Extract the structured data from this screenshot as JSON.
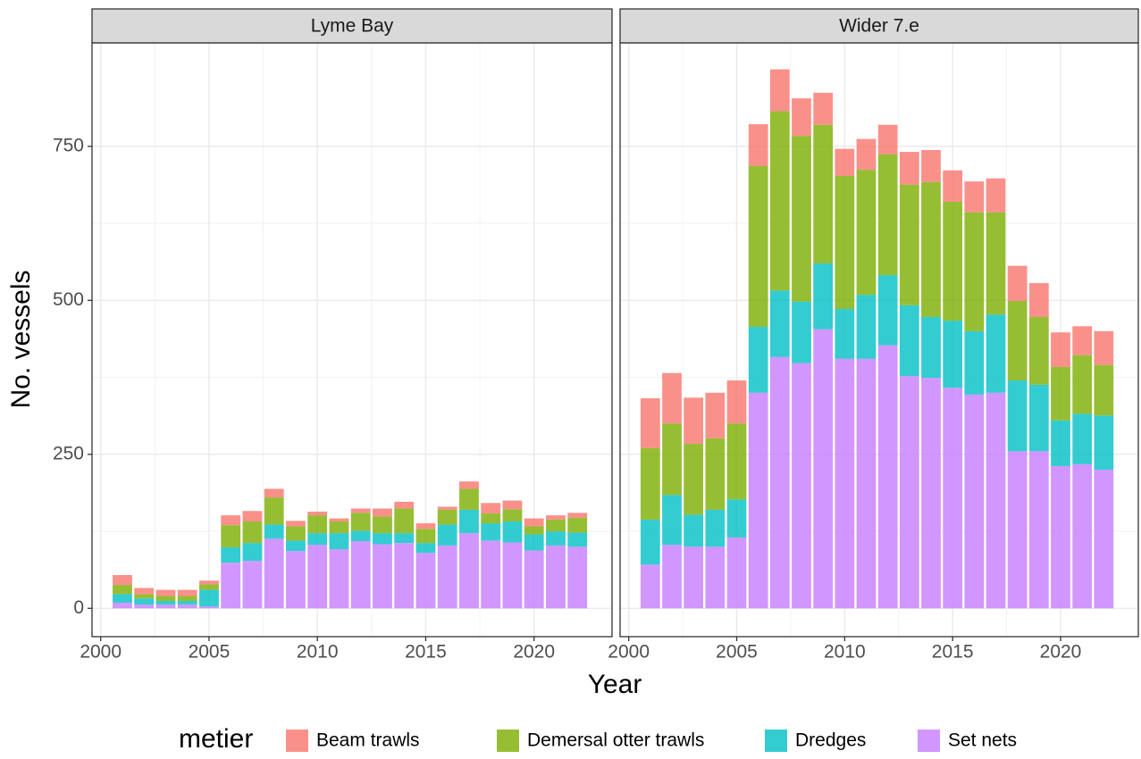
{
  "chart_data": [
    {
      "type": "bar",
      "stacked": true,
      "title": "Lyme Bay",
      "x_label": "Year",
      "y_label": "No. vessels",
      "legend_title": "metier",
      "legend_position": "bottom",
      "grid": true,
      "xlim": [
        1999.6,
        2023.6
      ],
      "xticks": [
        2000,
        2005,
        2010,
        2015,
        2020
      ],
      "ylim": [
        -46,
        918
      ],
      "yticks": [
        0,
        250,
        500,
        750
      ],
      "x": [
        2001,
        2002,
        2003,
        2004,
        2005,
        2006,
        2007,
        2008,
        2009,
        2010,
        2011,
        2012,
        2013,
        2014,
        2015,
        2016,
        2017,
        2018,
        2019,
        2020,
        2021,
        2022
      ],
      "series": [
        {
          "name": "Beam trawls",
          "color": "#F8766D",
          "values": [
            16,
            10,
            10,
            10,
            6,
            16,
            17,
            14,
            9,
            6,
            5,
            7,
            13,
            11,
            9,
            5,
            12,
            17,
            14,
            13,
            7,
            8
          ]
        },
        {
          "name": "Demersal otter trawls",
          "color": "#7CAE00",
          "values": [
            15,
            7,
            8,
            8,
            9,
            36,
            35,
            44,
            23,
            29,
            19,
            29,
            27,
            40,
            23,
            24,
            34,
            16,
            20,
            13,
            19,
            24
          ]
        },
        {
          "name": "Dredges",
          "color": "#00BFC4",
          "values": [
            14,
            10,
            6,
            6,
            27,
            25,
            29,
            23,
            17,
            19,
            26,
            17,
            18,
            16,
            16,
            34,
            38,
            28,
            34,
            26,
            23,
            23
          ]
        },
        {
          "name": "Set nets",
          "color": "#C77CFF",
          "values": [
            9,
            6,
            6,
            6,
            3,
            74,
            77,
            113,
            93,
            103,
            96,
            109,
            104,
            106,
            90,
            102,
            122,
            110,
            107,
            94,
            102,
            100
          ]
        }
      ]
    },
    {
      "type": "bar",
      "stacked": true,
      "title": "Wider 7.e",
      "grid": true,
      "xlim": [
        1999.6,
        2023.6
      ],
      "xticks": [
        2000,
        2005,
        2010,
        2015,
        2020
      ],
      "ylim": [
        -46,
        918
      ],
      "yticks": [
        0,
        250,
        500,
        750
      ],
      "x": [
        2001,
        2002,
        2003,
        2004,
        2005,
        2006,
        2007,
        2008,
        2009,
        2010,
        2011,
        2012,
        2013,
        2014,
        2015,
        2016,
        2017,
        2018,
        2019,
        2020,
        2021,
        2022
      ],
      "series": [
        {
          "name": "Beam trawls",
          "color": "#F8766D",
          "values": [
            81,
            82,
            75,
            74,
            70,
            68,
            68,
            61,
            52,
            44,
            50,
            48,
            53,
            52,
            51,
            50,
            55,
            57,
            55,
            56,
            47,
            55
          ]
        },
        {
          "name": "Demersal otter trawls",
          "color": "#7CAE00",
          "values": [
            116,
            116,
            115,
            116,
            123,
            261,
            291,
            269,
            225,
            216,
            203,
            196,
            196,
            219,
            193,
            193,
            166,
            129,
            110,
            87,
            95,
            82
          ]
        },
        {
          "name": "Dredges",
          "color": "#00BFC4",
          "values": [
            73,
            81,
            52,
            60,
            62,
            107,
            108,
            100,
            107,
            81,
            104,
            114,
            115,
            99,
            109,
            103,
            127,
            115,
            108,
            74,
            82,
            88
          ]
        },
        {
          "name": "Set nets",
          "color": "#C77CFF",
          "values": [
            71,
            103,
            100,
            100,
            115,
            350,
            408,
            398,
            453,
            405,
            405,
            427,
            377,
            374,
            358,
            347,
            350,
            255,
            255,
            231,
            234,
            225
          ]
        }
      ]
    }
  ]
}
